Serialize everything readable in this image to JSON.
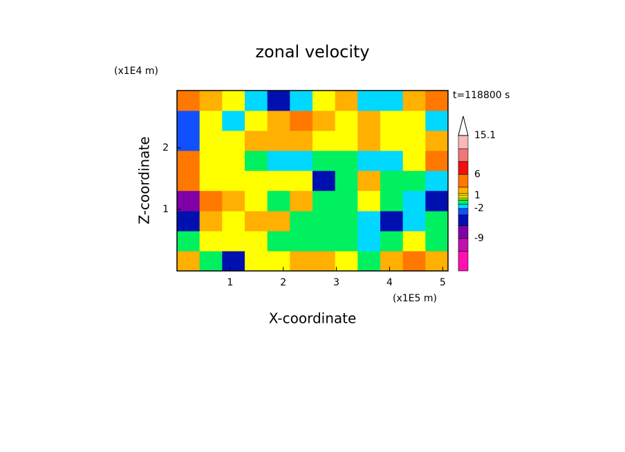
{
  "chart_data": {
    "type": "contour",
    "title": "zonal velocity",
    "time_label": "t=118800 s",
    "x_label": "X-coordinate",
    "y_label": "Z-coordinate",
    "x_unit": "(x1E5 m)",
    "y_unit": "(x1E4 m)",
    "xlim": [
      0,
      5.1
    ],
    "ylim": [
      0,
      2.93
    ],
    "xticks": [
      1,
      2,
      3,
      4,
      5
    ],
    "yticks": [
      1,
      2
    ],
    "x": [
      0.21,
      0.64,
      1.06,
      1.49,
      1.91,
      2.34,
      2.76,
      3.19,
      3.61,
      4.04,
      4.46,
      4.89
    ],
    "y": [
      0.16,
      0.49,
      0.81,
      1.14,
      1.47,
      1.79,
      2.12,
      2.44,
      2.77
    ],
    "z": [
      [
        2,
        -1,
        -4,
        0.7,
        0.7,
        2,
        2,
        0.7,
        -0.5,
        2,
        4,
        2
      ],
      [
        -1,
        0.7,
        0.7,
        0.7,
        -0.5,
        -0.5,
        -0.5,
        -0.5,
        -1.5,
        -0.5,
        0.7,
        -0.5
      ],
      [
        -5,
        2,
        0.7,
        2,
        2,
        -0.5,
        -0.5,
        -0.5,
        -1.5,
        -4,
        -1.5,
        -0.5
      ],
      [
        -7,
        3,
        2,
        0.7,
        -0.5,
        2,
        -0.5,
        -0.5,
        0.7,
        -0.5,
        -1.5,
        -5
      ],
      [
        4,
        0.7,
        0.7,
        0.7,
        0.7,
        0.7,
        -4,
        -0.5,
        2,
        -0.5,
        -0.5,
        -1.5
      ],
      [
        3,
        0.7,
        0.7,
        -0.5,
        -1.5,
        -1.5,
        -0.5,
        -0.5,
        -1.5,
        -1.5,
        0.7,
        3
      ],
      [
        -2.5,
        0.7,
        0.7,
        2,
        2,
        2,
        0.7,
        0.7,
        2,
        0.7,
        0.7,
        2
      ],
      [
        -3,
        0.7,
        -1.5,
        0.7,
        2,
        3,
        2,
        0.7,
        2,
        0.7,
        0.7,
        -1.5
      ],
      [
        3,
        2,
        0.7,
        -1.5,
        -5,
        -1.5,
        0.7,
        2,
        -1.5,
        -1.5,
        2,
        3
      ]
    ],
    "levels": [
      -16.6,
      -12,
      -9,
      -6,
      -3.5,
      -2,
      -1,
      0,
      0.5,
      1,
      1.5,
      3,
      6,
      9,
      12,
      15.1
    ],
    "colors": [
      "#ff10b0",
      "#c010b0",
      "#8000a8",
      "#0010b0",
      "#1050ff",
      "#00d8ff",
      "#00f060",
      "#b0f000",
      "#ffff00",
      "#ffd800",
      "#ffb000",
      "#ff7800",
      "#f01010",
      "#f07878",
      "#f8b8b8"
    ],
    "colorbar_ticks": [
      15.1,
      6,
      1,
      -2,
      -9
    ]
  }
}
